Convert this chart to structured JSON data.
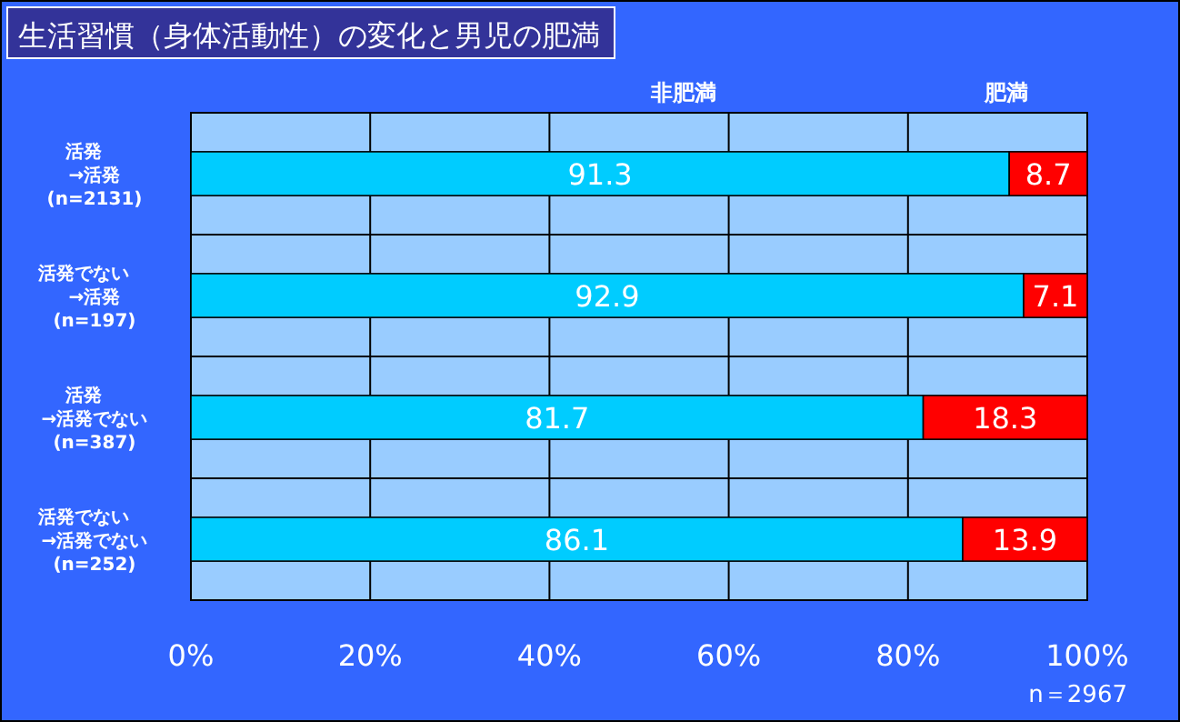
{
  "chart_data": {
    "type": "bar",
    "orientation": "horizontal",
    "stacked": true,
    "title": "生活習慣（身体活動性）の変化と男児の肥満",
    "categories": [
      "活発\n→活発\n(n=2131)",
      "活発でない\n→活発\n(n=197)",
      "活発\n→活発でない\n(n=387)",
      "活発でない\n→活発でない\n(n=252)"
    ],
    "series": [
      {
        "name": "非肥満",
        "color": "#00ccff",
        "values": [
          91.3,
          92.9,
          81.7,
          86.1
        ]
      },
      {
        "name": "肥満",
        "color": "#ff0000",
        "values": [
          8.7,
          7.1,
          18.3,
          13.9
        ]
      }
    ],
    "xlim": [
      0,
      100
    ],
    "xticks": [
      {
        "value": 0,
        "label": "0%"
      },
      {
        "value": 20,
        "label": "20%"
      },
      {
        "value": 40,
        "label": "40%"
      },
      {
        "value": 60,
        "label": "60%"
      },
      {
        "value": 80,
        "label": "80%"
      },
      {
        "value": 100,
        "label": "100%"
      }
    ],
    "grid": "x",
    "legend": "top",
    "data_labels": true,
    "annotations": [
      "n＝2967"
    ]
  }
}
